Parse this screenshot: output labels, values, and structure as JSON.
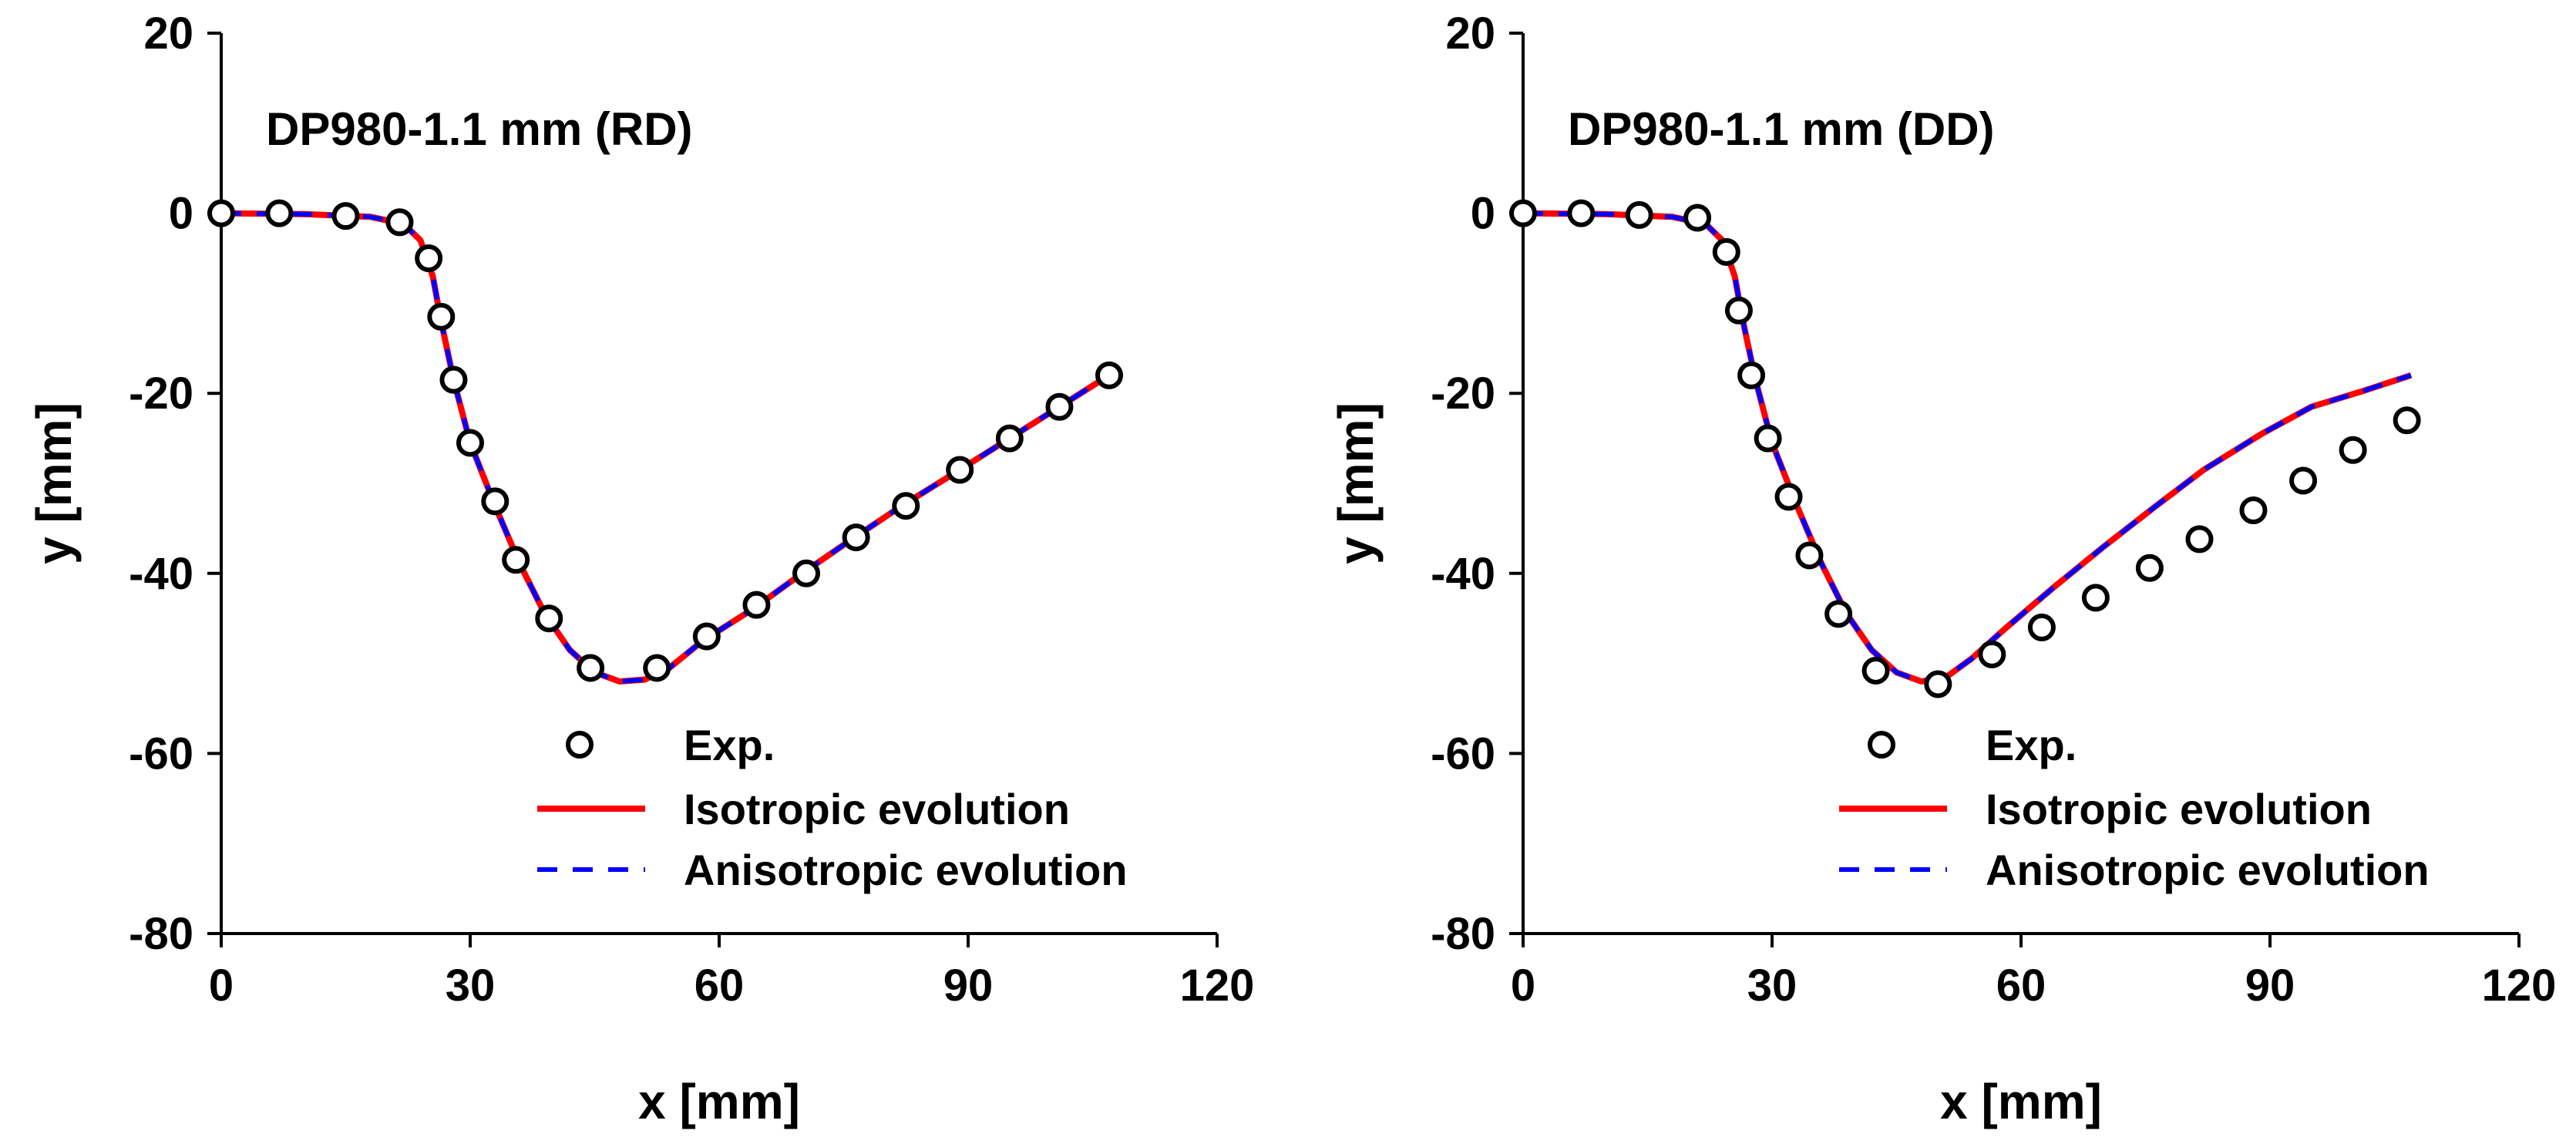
{
  "chart_data": [
    {
      "type": "line",
      "title": "DP980-1.1 mm (RD)",
      "xlabel": "x [mm]",
      "ylabel": "y [mm]",
      "xlim": [
        0,
        120
      ],
      "ylim": [
        -80,
        20
      ],
      "xticks": [
        0,
        30,
        60,
        90,
        120
      ],
      "yticks": [
        -80,
        -60,
        -40,
        -20,
        0,
        20
      ],
      "xtick_labels": [
        "0",
        "30",
        "60",
        "90",
        "120"
      ],
      "ytick_labels": [
        "-80",
        "-60",
        "-40",
        "-20",
        "0",
        "20"
      ],
      "legend_position": "bottom-right",
      "series": [
        {
          "name": "Exp.",
          "kind": "scatter",
          "marker": "open-circle",
          "color": "#000000",
          "x": [
            0,
            7,
            15,
            21.5,
            25,
            26.5,
            28,
            30,
            33,
            35.5,
            39.5,
            44.5,
            52.5,
            58.5,
            64.5,
            70.5,
            76.5,
            82.5,
            89,
            95,
            101,
            107
          ],
          "y": [
            0,
            0,
            -0.3,
            -1,
            -5,
            -11.5,
            -18.5,
            -25.5,
            -32,
            -38.5,
            -45,
            -50.5,
            -50.5,
            -47,
            -43.5,
            -40,
            -36,
            -32.5,
            -28.5,
            -25,
            -21.5,
            -18
          ]
        },
        {
          "name": "Isotropic evolution",
          "kind": "line",
          "style": "solid",
          "color": "#ff0000",
          "x": [
            0,
            10,
            18,
            22,
            24,
            25.5,
            26.5,
            28,
            30,
            33,
            36,
            39,
            42,
            45,
            48,
            51,
            54,
            58,
            64,
            70,
            76,
            82,
            89,
            95,
            101,
            107
          ],
          "y": [
            0,
            -0.1,
            -0.4,
            -1.2,
            -3,
            -7,
            -12,
            -18.5,
            -25.5,
            -32.5,
            -39,
            -44.5,
            -48.5,
            -51,
            -52,
            -51.8,
            -50.5,
            -47.5,
            -44,
            -40,
            -36.2,
            -32.5,
            -28.5,
            -25,
            -21.5,
            -18
          ]
        },
        {
          "name": "Anisotropic evolution",
          "kind": "line",
          "style": "dashed",
          "color": "#0000ff",
          "x": [
            0,
            10,
            18,
            22,
            24,
            25.5,
            26.5,
            28,
            30,
            33,
            36,
            39,
            42,
            45,
            48,
            51,
            54,
            58,
            64,
            70,
            76,
            82,
            89,
            95,
            101,
            107
          ],
          "y": [
            0,
            -0.1,
            -0.4,
            -1.2,
            -3,
            -7,
            -12,
            -18.5,
            -25.5,
            -32.5,
            -39,
            -44.5,
            -48.5,
            -51,
            -52,
            -51.8,
            -50.5,
            -47.5,
            -44,
            -40,
            -36.2,
            -32.5,
            -28.5,
            -25,
            -21.5,
            -18
          ]
        }
      ]
    },
    {
      "type": "line",
      "title": "DP980-1.1 mm (DD)",
      "xlabel": "x [mm]",
      "ylabel": "y [mm]",
      "xlim": [
        0,
        120
      ],
      "ylim": [
        -80,
        20
      ],
      "xticks": [
        0,
        30,
        60,
        90,
        120
      ],
      "yticks": [
        -80,
        -60,
        -40,
        -20,
        0,
        20
      ],
      "xtick_labels": [
        "0",
        "30",
        "60",
        "90",
        "120"
      ],
      "ytick_labels": [
        "-80",
        "-60",
        "-40",
        "-20",
        "0",
        "20"
      ],
      "legend_position": "bottom-right",
      "series": [
        {
          "name": "Exp.",
          "kind": "scatter",
          "marker": "open-circle",
          "color": "#000000",
          "x": [
            0,
            7,
            14,
            21,
            24.5,
            26,
            27.5,
            29.5,
            32,
            34.5,
            38,
            42.5,
            50,
            56.5,
            62.5,
            69,
            75.5,
            81.5,
            88,
            94,
            100,
            106.5
          ],
          "y": [
            0,
            0,
            -0.2,
            -0.5,
            -4.3,
            -10.8,
            -18,
            -25,
            -31.5,
            -38,
            -44.5,
            -50.8,
            -52.3,
            -49,
            -46,
            -42.7,
            -39.4,
            -36.2,
            -33,
            -29.7,
            -26.3,
            -23
          ]
        },
        {
          "name": "Isotropic evolution",
          "kind": "line",
          "style": "solid",
          "color": "#ff0000",
          "x": [
            0,
            10,
            18,
            22,
            24,
            25.5,
            26.5,
            28,
            30,
            33,
            36,
            39,
            42,
            45,
            48,
            51,
            54,
            58,
            64,
            70,
            76,
            82,
            89,
            95,
            101,
            107
          ],
          "y": [
            0,
            -0.1,
            -0.4,
            -1.2,
            -3,
            -7,
            -12,
            -18.5,
            -25.5,
            -32.5,
            -39,
            -44.5,
            -48.5,
            -51,
            -52,
            -51.5,
            -49.5,
            -46.2,
            -41.5,
            -37,
            -32.7,
            -28.5,
            -24.5,
            -21.5,
            -19.8,
            -18
          ]
        },
        {
          "name": "Anisotropic evolution",
          "kind": "line",
          "style": "dashed",
          "color": "#0000ff",
          "x": [
            0,
            10,
            18,
            22,
            24,
            25.5,
            26.5,
            28,
            30,
            33,
            36,
            39,
            42,
            45,
            48,
            51,
            54,
            58,
            64,
            70,
            76,
            82,
            89,
            95,
            101,
            107
          ],
          "y": [
            0,
            -0.1,
            -0.4,
            -1.2,
            -3,
            -7,
            -12,
            -18.5,
            -25.5,
            -32.5,
            -39,
            -44.5,
            -48.5,
            -51,
            -52,
            -51.5,
            -49.5,
            -46.2,
            -41.5,
            -37,
            -32.7,
            -28.5,
            -24.5,
            -21.5,
            -19.8,
            -18
          ]
        }
      ]
    }
  ]
}
